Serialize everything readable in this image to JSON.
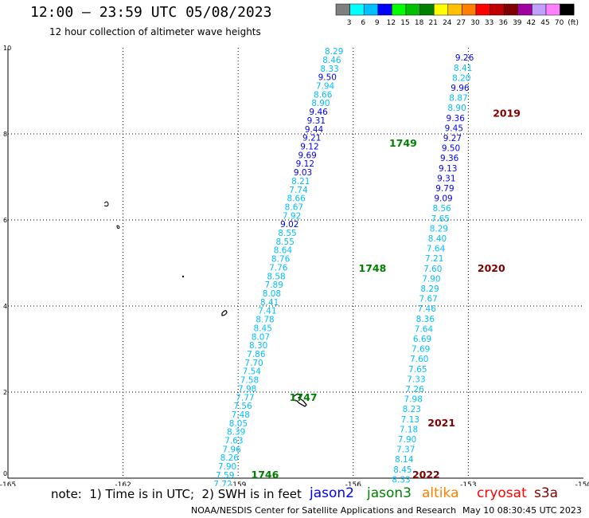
{
  "header": {
    "title": "12:00 — 23:59 UTC 05/08/2023",
    "subtitle": "12 hour collection of altimeter wave heights"
  },
  "colorbar": {
    "colors": [
      "#7f7f7f",
      "#00ffff",
      "#00bfff",
      "#0000ff",
      "#00ff00",
      "#00c000",
      "#008000",
      "#ffff00",
      "#ffc000",
      "#ff8000",
      "#ff0000",
      "#c00000",
      "#800000",
      "#a000a0",
      "#c0a0ff",
      "#ff80ff",
      "#000000"
    ],
    "labels": [
      "3",
      "6",
      "9",
      "12",
      "15",
      "18",
      "21",
      "24",
      "27",
      "30",
      "33",
      "36",
      "39",
      "42",
      "45",
      "70",
      "(ft)"
    ]
  },
  "chart_data": {
    "type": "scatter",
    "title": "12:00 — 23:59 UTC 05/08/2023",
    "subtitle": "12 hour collection of altimeter wave heights",
    "xlim": [
      -165,
      -150
    ],
    "ylim": [
      0,
      10
    ],
    "x_ticks": [
      "-165",
      "-162",
      "-159",
      "-156",
      "-153",
      "-150"
    ],
    "y_ticks": [
      "0",
      "2",
      "4",
      "6",
      "8",
      "10"
    ],
    "grid": true,
    "units": "ft",
    "tracks": [
      {
        "name": "jason3",
        "x_start": -159.4,
        "y_start": -0.2,
        "x_end": -156.5,
        "y_end": 9.85,
        "values": [
          "7.72",
          "7.59",
          "7.90",
          "8.26",
          "7.96",
          "7.63",
          "8.39",
          "8.05",
          "7.48",
          "7.56",
          "7.77",
          "7.98",
          "7.58",
          "7.54",
          "7.70",
          "7.86",
          "8.30",
          "8.07",
          "8.45",
          "8.78",
          "7.41",
          "8.41",
          "8.08",
          "7.89",
          "8.58",
          "7.76",
          "8.76",
          "8.64",
          "8.55",
          "8.55",
          "9.02",
          "7.92",
          "8.67",
          "8.66",
          "7.74",
          "8.21",
          "9.03",
          "9.12",
          "9.69",
          "9.12",
          "9.21",
          "9.44",
          "9.31",
          "9.46",
          "8.90",
          "8.66",
          "7.94",
          "9.50",
          "8.33",
          "8.46",
          "8.29"
        ],
        "time_labels": [
          {
            "text": "1746",
            "x": -158.3,
            "y": 0.0
          },
          {
            "text": "1747",
            "x": -157.3,
            "y": 1.8
          },
          {
            "text": "1748",
            "x": -155.5,
            "y": 4.8
          },
          {
            "text": "1749",
            "x": -154.7,
            "y": 7.7
          }
        ]
      },
      {
        "name": "jason3",
        "x_start": -154.75,
        "y_start": -0.1,
        "x_end": -153.1,
        "y_end": 9.7,
        "values": [
          "8.33",
          "8.45",
          "8.14",
          "7.37",
          "7.90",
          "7.18",
          "7.13",
          "8.23",
          "7.98",
          "7.26",
          "7.33",
          "7.65",
          "7.60",
          "7.69",
          "6.69",
          "7.64",
          "8.36",
          "7.46",
          "7.67",
          "8.29",
          "7.90",
          "7.60",
          "7.21",
          "7.64",
          "8.40",
          "8.29",
          "7.65",
          "8.56",
          "9.09",
          "9.79",
          "9.31",
          "9.13",
          "9.36",
          "9.50",
          "9.27",
          "9.45",
          "9.36",
          "8.90",
          "8.87",
          "9.96",
          "8.20",
          "8.41",
          "9.26"
        ],
        "time_labels": [
          {
            "text": "2022",
            "x": -154.1,
            "y": 0.0
          },
          {
            "text": "2021",
            "x": -153.7,
            "y": 1.2
          },
          {
            "text": "2020",
            "x": -152.4,
            "y": 4.8
          },
          {
            "text": "2019",
            "x": -152.0,
            "y": 8.4
          }
        ]
      }
    ]
  },
  "legend": {
    "items": [
      {
        "label": "jason2",
        "color": "#0000ff"
      },
      {
        "label": "jason3",
        "color": "#008000"
      },
      {
        "label": "altika",
        "color": "#ff8000"
      },
      {
        "label": "cryosat",
        "color": "#ff0000"
      },
      {
        "label": "s3a",
        "color": "#800000"
      }
    ]
  },
  "footer": {
    "note": "note:  1) Time is in UTC;  2) SWH is in feet",
    "credit": "NOAA/NESDIS Center for Satellite Applications and Research",
    "timestamp": "May 10 08:30:45 UTC 2023"
  }
}
